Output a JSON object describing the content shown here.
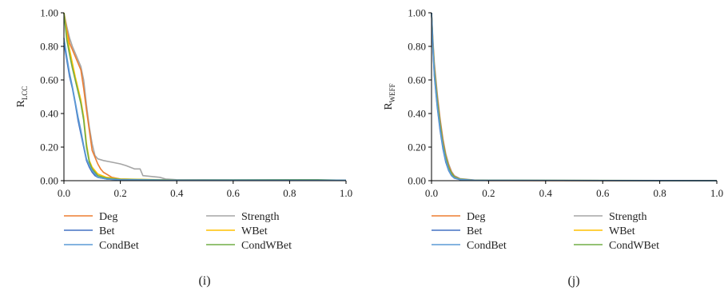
{
  "chart_data": [
    {
      "type": "line",
      "caption": "(i)",
      "ylabel_main": "R",
      "ylabel_sub": "LCC",
      "xlabel": "",
      "xlim": [
        0,
        1
      ],
      "ylim": [
        0,
        1
      ],
      "xticks": [
        "0.0",
        "0.2",
        "0.4",
        "0.6",
        "0.8",
        "1.0"
      ],
      "yticks": [
        "0.00",
        "0.20",
        "0.40",
        "0.60",
        "0.80",
        "1.00"
      ],
      "grid": false,
      "legend_position": "bottom",
      "series": [
        {
          "name": "Deg",
          "color": "#ED7D31",
          "points": [
            [
              0,
              1
            ],
            [
              0.01,
              0.9
            ],
            [
              0.02,
              0.82
            ],
            [
              0.03,
              0.78
            ],
            [
              0.04,
              0.74
            ],
            [
              0.05,
              0.7
            ],
            [
              0.06,
              0.66
            ],
            [
              0.07,
              0.55
            ],
            [
              0.08,
              0.42
            ],
            [
              0.09,
              0.3
            ],
            [
              0.1,
              0.18
            ],
            [
              0.11,
              0.14
            ],
            [
              0.12,
              0.1
            ],
            [
              0.13,
              0.07
            ],
            [
              0.14,
              0.05
            ],
            [
              0.15,
              0.04
            ],
            [
              0.16,
              0.03
            ],
            [
              0.17,
              0.02
            ],
            [
              0.2,
              0.01
            ],
            [
              0.3,
              0.005
            ],
            [
              0.4,
              0.003
            ],
            [
              1,
              0.002
            ]
          ]
        },
        {
          "name": "Strength",
          "color": "#A5A5A5",
          "points": [
            [
              0,
              1
            ],
            [
              0.01,
              0.92
            ],
            [
              0.02,
              0.85
            ],
            [
              0.03,
              0.8
            ],
            [
              0.04,
              0.76
            ],
            [
              0.05,
              0.72
            ],
            [
              0.06,
              0.68
            ],
            [
              0.07,
              0.6
            ],
            [
              0.08,
              0.45
            ],
            [
              0.09,
              0.32
            ],
            [
              0.1,
              0.22
            ],
            [
              0.11,
              0.15
            ],
            [
              0.12,
              0.13
            ],
            [
              0.14,
              0.12
            ],
            [
              0.17,
              0.11
            ],
            [
              0.2,
              0.1
            ],
            [
              0.22,
              0.09
            ],
            [
              0.25,
              0.07
            ],
            [
              0.27,
              0.07
            ],
            [
              0.28,
              0.03
            ],
            [
              0.34,
              0.02
            ],
            [
              0.36,
              0.01
            ],
            [
              0.4,
              0.006
            ],
            [
              0.6,
              0.004
            ],
            [
              0.8,
              0.005
            ],
            [
              0.9,
              0.003
            ],
            [
              1,
              0.002
            ]
          ]
        },
        {
          "name": "Bet",
          "color": "#4472C4",
          "points": [
            [
              0,
              0.82
            ],
            [
              0.01,
              0.72
            ],
            [
              0.02,
              0.62
            ],
            [
              0.03,
              0.55
            ],
            [
              0.04,
              0.46
            ],
            [
              0.05,
              0.36
            ],
            [
              0.06,
              0.28
            ],
            [
              0.07,
              0.2
            ],
            [
              0.08,
              0.12
            ],
            [
              0.09,
              0.08
            ],
            [
              0.1,
              0.05
            ],
            [
              0.11,
              0.03
            ],
            [
              0.12,
              0.02
            ],
            [
              0.15,
              0.01
            ],
            [
              0.2,
              0.005
            ],
            [
              0.4,
              0.003
            ],
            [
              1,
              0.002
            ]
          ]
        },
        {
          "name": "WBet",
          "color": "#FFC000",
          "points": [
            [
              0,
              1
            ],
            [
              0.01,
              0.88
            ],
            [
              0.02,
              0.78
            ],
            [
              0.03,
              0.7
            ],
            [
              0.04,
              0.62
            ],
            [
              0.05,
              0.55
            ],
            [
              0.06,
              0.48
            ],
            [
              0.07,
              0.38
            ],
            [
              0.08,
              0.22
            ],
            [
              0.09,
              0.12
            ],
            [
              0.1,
              0.08
            ],
            [
              0.12,
              0.04
            ],
            [
              0.15,
              0.02
            ],
            [
              0.2,
              0.01
            ],
            [
              0.4,
              0.004
            ],
            [
              1,
              0.002
            ]
          ]
        },
        {
          "name": "CondBet",
          "color": "#5B9BD5",
          "points": [
            [
              0,
              0.85
            ],
            [
              0.01,
              0.74
            ],
            [
              0.02,
              0.64
            ],
            [
              0.03,
              0.56
            ],
            [
              0.04,
              0.47
            ],
            [
              0.05,
              0.38
            ],
            [
              0.06,
              0.3
            ],
            [
              0.07,
              0.21
            ],
            [
              0.08,
              0.13
            ],
            [
              0.09,
              0.09
            ],
            [
              0.1,
              0.06
            ],
            [
              0.11,
              0.04
            ],
            [
              0.12,
              0.02
            ],
            [
              0.15,
              0.01
            ],
            [
              0.2,
              0.005
            ],
            [
              0.4,
              0.003
            ],
            [
              1,
              0.002
            ]
          ]
        },
        {
          "name": "CondWBet",
          "color": "#70AD47",
          "points": [
            [
              0,
              1
            ],
            [
              0.01,
              0.84
            ],
            [
              0.02,
              0.75
            ],
            [
              0.03,
              0.67
            ],
            [
              0.04,
              0.6
            ],
            [
              0.05,
              0.53
            ],
            [
              0.06,
              0.46
            ],
            [
              0.07,
              0.36
            ],
            [
              0.08,
              0.2
            ],
            [
              0.09,
              0.11
            ],
            [
              0.1,
              0.07
            ],
            [
              0.12,
              0.03
            ],
            [
              0.15,
              0.015
            ],
            [
              0.2,
              0.008
            ],
            [
              0.4,
              0.004
            ],
            [
              0.9,
              0.006
            ],
            [
              1,
              0.002
            ]
          ]
        }
      ]
    },
    {
      "type": "line",
      "caption": "(j)",
      "ylabel_main": "R",
      "ylabel_sub": "WEFF",
      "xlabel": "",
      "xlim": [
        0,
        1
      ],
      "ylim": [
        0,
        1
      ],
      "xticks": [
        "0.0",
        "0.2",
        "0.4",
        "0.6",
        "0.8",
        "1.0"
      ],
      "yticks": [
        "0.00",
        "0.20",
        "0.40",
        "0.60",
        "0.80",
        "1.00"
      ],
      "grid": false,
      "legend_position": "bottom",
      "series": [
        {
          "name": "Deg",
          "color": "#ED7D31",
          "points": [
            [
              0,
              1
            ],
            [
              0.005,
              0.82
            ],
            [
              0.01,
              0.68
            ],
            [
              0.02,
              0.5
            ],
            [
              0.03,
              0.36
            ],
            [
              0.04,
              0.24
            ],
            [
              0.05,
              0.15
            ],
            [
              0.06,
              0.09
            ],
            [
              0.07,
              0.05
            ],
            [
              0.08,
              0.025
            ],
            [
              0.1,
              0.01
            ],
            [
              0.15,
              0.003
            ],
            [
              0.2,
              0.001
            ],
            [
              1,
              0
            ]
          ]
        },
        {
          "name": "Strength",
          "color": "#A5A5A5",
          "points": [
            [
              0,
              1
            ],
            [
              0.005,
              0.84
            ],
            [
              0.01,
              0.7
            ],
            [
              0.02,
              0.52
            ],
            [
              0.03,
              0.37
            ],
            [
              0.04,
              0.25
            ],
            [
              0.05,
              0.16
            ],
            [
              0.06,
              0.1
            ],
            [
              0.07,
              0.055
            ],
            [
              0.08,
              0.03
            ],
            [
              0.1,
              0.012
            ],
            [
              0.15,
              0.004
            ],
            [
              0.2,
              0.001
            ],
            [
              1,
              0
            ]
          ]
        },
        {
          "name": "Bet",
          "color": "#4472C4",
          "points": [
            [
              0,
              1
            ],
            [
              0.005,
              0.78
            ],
            [
              0.01,
              0.62
            ],
            [
              0.02,
              0.44
            ],
            [
              0.03,
              0.3
            ],
            [
              0.04,
              0.19
            ],
            [
              0.05,
              0.11
            ],
            [
              0.06,
              0.06
            ],
            [
              0.07,
              0.03
            ],
            [
              0.08,
              0.015
            ],
            [
              0.1,
              0.006
            ],
            [
              0.15,
              0.002
            ],
            [
              1,
              0
            ]
          ]
        },
        {
          "name": "WBet",
          "color": "#FFC000",
          "points": [
            [
              0,
              1
            ],
            [
              0.005,
              0.8
            ],
            [
              0.01,
              0.65
            ],
            [
              0.02,
              0.47
            ],
            [
              0.03,
              0.33
            ],
            [
              0.04,
              0.21
            ],
            [
              0.05,
              0.13
            ],
            [
              0.06,
              0.07
            ],
            [
              0.07,
              0.04
            ],
            [
              0.08,
              0.02
            ],
            [
              0.1,
              0.008
            ],
            [
              0.15,
              0.002
            ],
            [
              1,
              0
            ]
          ]
        },
        {
          "name": "CondBet",
          "color": "#5B9BD5",
          "points": [
            [
              0,
              1
            ],
            [
              0.005,
              0.79
            ],
            [
              0.01,
              0.63
            ],
            [
              0.02,
              0.45
            ],
            [
              0.03,
              0.31
            ],
            [
              0.04,
              0.2
            ],
            [
              0.05,
              0.12
            ],
            [
              0.06,
              0.065
            ],
            [
              0.07,
              0.032
            ],
            [
              0.08,
              0.016
            ],
            [
              0.1,
              0.007
            ],
            [
              0.15,
              0.002
            ],
            [
              1,
              0
            ]
          ]
        },
        {
          "name": "CondWBet",
          "color": "#70AD47",
          "points": [
            [
              0,
              1
            ],
            [
              0.005,
              0.81
            ],
            [
              0.01,
              0.66
            ],
            [
              0.02,
              0.48
            ],
            [
              0.03,
              0.34
            ],
            [
              0.04,
              0.22
            ],
            [
              0.05,
              0.14
            ],
            [
              0.06,
              0.08
            ],
            [
              0.07,
              0.045
            ],
            [
              0.08,
              0.022
            ],
            [
              0.1,
              0.009
            ],
            [
              0.15,
              0.003
            ],
            [
              1,
              0
            ]
          ]
        }
      ]
    }
  ]
}
